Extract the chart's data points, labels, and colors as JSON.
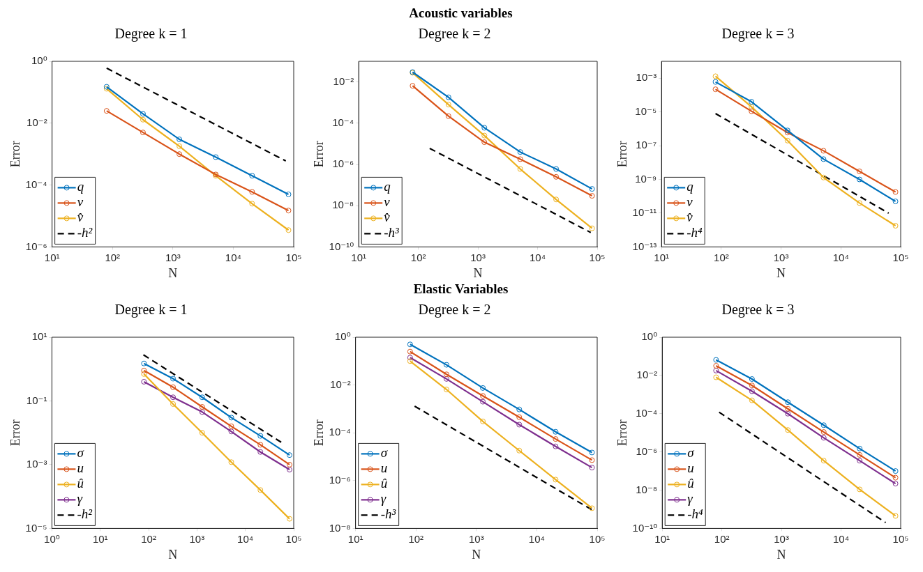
{
  "chart_data": [
    {
      "type": "line",
      "title": "Degree k = 1",
      "xlabel": "N",
      "ylabel": "Error",
      "log": "xy",
      "marker": "circle",
      "legend": "bottom left",
      "xlim": [
        10,
        100000
      ],
      "ylim": [
        1e-06,
        1
      ],
      "xticks": [
        {
          "value": 10,
          "label": "10¹"
        },
        {
          "value": 100,
          "label": "10²"
        },
        {
          "value": 1000,
          "label": "10³"
        },
        {
          "value": 10000,
          "label": "10⁴"
        },
        {
          "value": 100000,
          "label": "10⁵"
        }
      ],
      "yticks": [
        {
          "value": 1e-06,
          "label": "10⁻⁶"
        },
        {
          "value": 0.0001,
          "label": "10⁻⁴"
        },
        {
          "value": 0.01,
          "label": "10⁻²"
        },
        {
          "value": 1,
          "label": "10⁰"
        }
      ],
      "x": [
        80,
        320,
        1280,
        5120,
        20480,
        81920
      ],
      "series": [
        {
          "name": "q",
          "color": "#0072bd",
          "values": [
            0.15,
            0.02,
            0.003,
            0.0008,
            0.0002,
            5e-05
          ]
        },
        {
          "name": "v",
          "color": "#d95319",
          "values": [
            0.025,
            0.005,
            0.001,
            0.00022,
            6e-05,
            1.5e-05
          ]
        },
        {
          "name": "v̂",
          "color": "#edb120",
          "values": [
            0.13,
            0.013,
            0.0018,
            0.0002,
            2.5e-05,
            3.5e-06
          ]
        },
        {
          "name": "-h²",
          "color": "#000000",
          "marker": "none",
          "line_style": "dashed",
          "x": [
            80,
            74000
          ],
          "values": [
            0.6,
            0.0006
          ]
        }
      ]
    },
    {
      "type": "line",
      "title": "Degree k = 2",
      "xlabel": "N",
      "ylabel": "Error",
      "log": "xy",
      "marker": "circle",
      "legend": "bottom left",
      "annotations": [
        "Acoustic variables"
      ],
      "xlim": [
        10,
        100000
      ],
      "ylim": [
        1e-10,
        0.1
      ],
      "xticks": [
        {
          "value": 10,
          "label": "10¹"
        },
        {
          "value": 100,
          "label": "10²"
        },
        {
          "value": 1000,
          "label": "10³"
        },
        {
          "value": 10000,
          "label": "10⁴"
        },
        {
          "value": 100000,
          "label": "10⁵"
        }
      ],
      "yticks": [
        {
          "value": 1e-10,
          "label": "10⁻¹⁰"
        },
        {
          "value": 1e-08,
          "label": "10⁻⁸"
        },
        {
          "value": 1e-06,
          "label": "10⁻⁶"
        },
        {
          "value": 0.0001,
          "label": "10⁻⁴"
        },
        {
          "value": 0.01,
          "label": "10⁻²"
        }
      ],
      "x": [
        80,
        320,
        1280,
        5120,
        20480,
        81920
      ],
      "series": [
        {
          "name": "q",
          "color": "#0072bd",
          "values": [
            0.03,
            0.0018,
            6e-05,
            4e-06,
            6e-07,
            6.5e-08
          ]
        },
        {
          "name": "v",
          "color": "#d95319",
          "values": [
            0.0065,
            0.00022,
            1.2e-05,
            1.8e-06,
            2.5e-07,
            3e-08
          ]
        },
        {
          "name": "v̂",
          "color": "#edb120",
          "values": [
            0.028,
            0.0008,
            2.5e-05,
            6e-07,
            2e-08,
            8e-10
          ]
        },
        {
          "name": "-h³",
          "color": "#000000",
          "marker": "none",
          "line_style": "dashed",
          "x": [
            155,
            78000
          ],
          "values": [
            6e-06,
            5e-10
          ]
        }
      ]
    },
    {
      "type": "line",
      "title": "Degree k = 3",
      "xlabel": "N",
      "ylabel": "Error",
      "log": "xy",
      "marker": "circle",
      "legend": "bottom left",
      "xlim": [
        10,
        100000
      ],
      "ylim": [
        1e-13,
        0.01
      ],
      "xticks": [
        {
          "value": 10,
          "label": "10¹"
        },
        {
          "value": 100,
          "label": "10²"
        },
        {
          "value": 1000,
          "label": "10³"
        },
        {
          "value": 10000,
          "label": "10⁴"
        },
        {
          "value": 100000,
          "label": "10⁵"
        }
      ],
      "yticks": [
        {
          "value": 1e-13,
          "label": "10⁻¹³"
        },
        {
          "value": 1e-11,
          "label": "10⁻¹¹"
        },
        {
          "value": 1e-09,
          "label": "10⁻⁹"
        },
        {
          "value": 1e-07,
          "label": "10⁻⁷"
        },
        {
          "value": 1e-05,
          "label": "10⁻⁵"
        },
        {
          "value": 0.001,
          "label": "10⁻³"
        }
      ],
      "x": [
        80,
        320,
        1280,
        5120,
        20480,
        81920
      ],
      "series": [
        {
          "name": "q",
          "color": "#0072bd",
          "values": [
            0.0006,
            4e-05,
            8e-07,
            1.6e-08,
            1e-09,
            5e-11
          ]
        },
        {
          "name": "v",
          "color": "#d95319",
          "values": [
            0.00022,
            1.1e-05,
            6e-07,
            5e-08,
            3e-09,
            1.8e-10
          ]
        },
        {
          "name": "v̂",
          "color": "#edb120",
          "values": [
            0.0013,
            2e-05,
            2e-07,
            1.3e-09,
            4e-11,
            1.8e-12
          ]
        },
        {
          "name": "-h⁴",
          "color": "#000000",
          "marker": "none",
          "line_style": "dashed",
          "x": [
            80,
            63000
          ],
          "values": [
            8e-06,
            1e-11
          ]
        }
      ]
    },
    {
      "type": "line",
      "title": "Degree k = 1",
      "xlabel": "N",
      "ylabel": "Error",
      "log": "xy",
      "marker": "circle",
      "legend": "bottom left",
      "xlim": [
        1,
        100000
      ],
      "ylim": [
        1e-05,
        10
      ],
      "xticks": [
        {
          "value": 1,
          "label": "10⁰"
        },
        {
          "value": 10,
          "label": "10¹"
        },
        {
          "value": 100,
          "label": "10²"
        },
        {
          "value": 1000,
          "label": "10³"
        },
        {
          "value": 10000,
          "label": "10⁴"
        },
        {
          "value": 100000,
          "label": "10⁵"
        }
      ],
      "yticks": [
        {
          "value": 1e-05,
          "label": "10⁻⁵"
        },
        {
          "value": 0.001,
          "label": "10⁻³"
        },
        {
          "value": 0.1,
          "label": "10⁻¹"
        },
        {
          "value": 10,
          "label": "10¹"
        }
      ],
      "x": [
        80,
        320,
        1280,
        5120,
        20480,
        81920
      ],
      "series": [
        {
          "name": "σ",
          "color": "#0072bd",
          "values": [
            1.5,
            0.5,
            0.13,
            0.03,
            0.008,
            0.002
          ]
        },
        {
          "name": "u",
          "color": "#d95319",
          "values": [
            0.9,
            0.27,
            0.065,
            0.016,
            0.0042,
            0.001
          ]
        },
        {
          "name": "û",
          "color": "#edb120",
          "values": [
            0.7,
            0.08,
            0.01,
            0.0012,
            0.00016,
            2e-05
          ]
        },
        {
          "name": "γ",
          "color": "#7e2f8e",
          "values": [
            0.4,
            0.13,
            0.045,
            0.011,
            0.0025,
            0.0007
          ]
        },
        {
          "name": "-h²",
          "color": "#000000",
          "marker": "none",
          "line_style": "dashed",
          "x": [
            78,
            58000
          ],
          "values": [
            2.8,
            0.0048
          ]
        }
      ]
    },
    {
      "type": "line",
      "title": "Degree k = 2",
      "xlabel": "N",
      "ylabel": "Error",
      "log": "xy",
      "marker": "circle",
      "legend": "bottom left",
      "annotations": [
        "Elastic Variables"
      ],
      "xlim": [
        10,
        100000
      ],
      "ylim": [
        1e-08,
        1
      ],
      "xticks": [
        {
          "value": 10,
          "label": "10¹"
        },
        {
          "value": 100,
          "label": "10²"
        },
        {
          "value": 1000,
          "label": "10³"
        },
        {
          "value": 10000,
          "label": "10⁴"
        },
        {
          "value": 100000,
          "label": "10⁵"
        }
      ],
      "yticks": [
        {
          "value": 1e-08,
          "label": "10⁻⁸"
        },
        {
          "value": 1e-06,
          "label": "10⁻⁶"
        },
        {
          "value": 0.0001,
          "label": "10⁻⁴"
        },
        {
          "value": 0.01,
          "label": "10⁻²"
        },
        {
          "value": 1,
          "label": "10⁰"
        }
      ],
      "x": [
        80,
        320,
        1280,
        5120,
        20480,
        81920
      ],
      "series": [
        {
          "name": "σ",
          "color": "#0072bd",
          "values": [
            0.5,
            0.07,
            0.0075,
            0.00095,
            0.00011,
            1.5e-05
          ]
        },
        {
          "name": "u",
          "color": "#d95319",
          "values": [
            0.25,
            0.028,
            0.0035,
            0.00045,
            5.5e-05,
            7.2e-06
          ]
        },
        {
          "name": "û",
          "color": "#edb120",
          "values": [
            0.1,
            0.0065,
            0.0003,
            1.8e-05,
            1.1e-06,
            7e-08
          ]
        },
        {
          "name": "γ",
          "color": "#7e2f8e",
          "values": [
            0.14,
            0.018,
            0.002,
            0.00022,
            2.7e-05,
            3.5e-06
          ]
        },
        {
          "name": "-h³",
          "color": "#000000",
          "marker": "none",
          "line_style": "dashed",
          "x": [
            95,
            81920
          ],
          "values": [
            0.0013,
            6e-08
          ]
        }
      ]
    },
    {
      "type": "line",
      "title": "Degree k = 3",
      "xlabel": "N",
      "ylabel": "Error",
      "log": "xy",
      "marker": "circle",
      "legend": "bottom left",
      "xlim": [
        10,
        100000
      ],
      "ylim": [
        1e-10,
        1
      ],
      "xticks": [
        {
          "value": 10,
          "label": "10¹"
        },
        {
          "value": 100,
          "label": "10²"
        },
        {
          "value": 1000,
          "label": "10³"
        },
        {
          "value": 10000,
          "label": "10⁴"
        },
        {
          "value": 100000,
          "label": "10⁵"
        }
      ],
      "yticks": [
        {
          "value": 1e-10,
          "label": "10⁻¹⁰"
        },
        {
          "value": 1e-08,
          "label": "10⁻⁸"
        },
        {
          "value": 1e-06,
          "label": "10⁻⁶"
        },
        {
          "value": 0.0001,
          "label": "10⁻⁴"
        },
        {
          "value": 0.01,
          "label": "10⁻²"
        },
        {
          "value": 1,
          "label": "10⁰"
        }
      ],
      "x": [
        80,
        320,
        1280,
        5120,
        20480,
        81920
      ],
      "series": [
        {
          "name": "σ",
          "color": "#0072bd",
          "values": [
            0.065,
            0.0065,
            0.0004,
            2.5e-05,
            1.5e-06,
            1e-07
          ]
        },
        {
          "name": "u",
          "color": "#d95319",
          "values": [
            0.032,
            0.003,
            0.00018,
            1.1e-05,
            7e-07,
            4.5e-08
          ]
        },
        {
          "name": "û",
          "color": "#edb120",
          "values": [
            0.008,
            0.0005,
            1.4e-05,
            3.5e-07,
            1.1e-08,
            4.5e-10
          ]
        },
        {
          "name": "γ",
          "color": "#7e2f8e",
          "values": [
            0.018,
            0.0015,
            0.0001,
            5.5e-06,
            3.5e-07,
            2.2e-08
          ]
        },
        {
          "name": "-h⁴",
          "color": "#000000",
          "marker": "none",
          "line_style": "dashed",
          "x": [
            90,
            56000
          ],
          "values": [
            0.00012,
            2e-10
          ]
        }
      ]
    }
  ]
}
